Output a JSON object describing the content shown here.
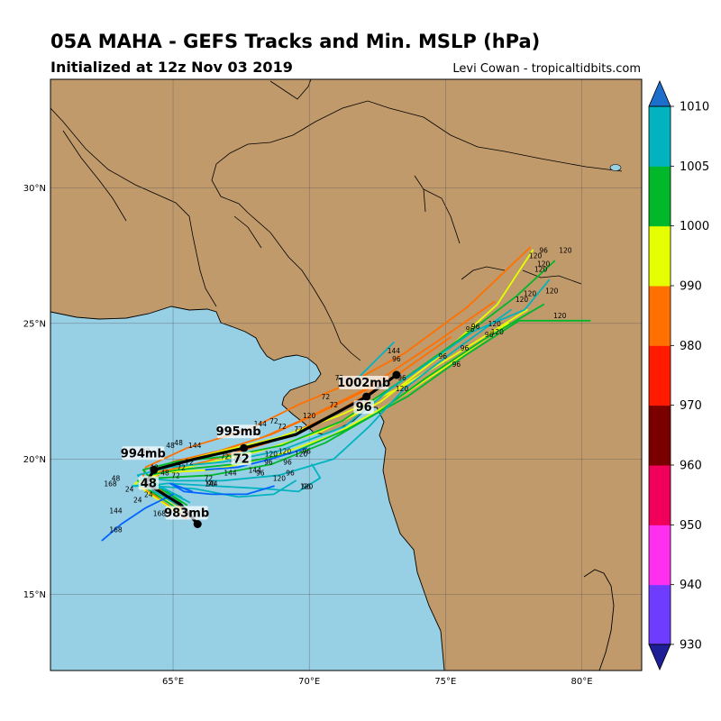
{
  "header": {
    "title": "05A MAHA - GEFS Tracks and Min. MSLP (hPa)",
    "subtitle": "Initialized at 12z Nov 03 2019",
    "credit": "Levi Cowan - tropicaltidbits.com"
  },
  "map": {
    "lon_range": [
      60.5,
      82.2
    ],
    "lat_range": [
      12.2,
      34.0
    ],
    "ocean_color": "#97cfe5",
    "land_color": "#c09a6b",
    "lon_ticks": [
      {
        "lon": 65,
        "label": "65°E"
      },
      {
        "lon": 70,
        "label": "70°E"
      },
      {
        "lon": 75,
        "label": "75°E"
      },
      {
        "lon": 80,
        "label": "80°E"
      }
    ],
    "lat_ticks": [
      {
        "lat": 15,
        "label": "15°N"
      },
      {
        "lat": 20,
        "label": "20°N"
      },
      {
        "lat": 25,
        "label": "25°N"
      },
      {
        "lat": 30,
        "label": "30°N"
      }
    ]
  },
  "chart_data": {
    "type": "scatter",
    "title": "05A MAHA - GEFS Tracks and Min. MSLP (hPa)",
    "xlabel": "",
    "ylabel": "",
    "xlim": [
      60.5,
      82.2
    ],
    "ylim": [
      12.2,
      34.0
    ],
    "grid": true,
    "mean_track": [
      {
        "lon": 65.9,
        "lat": 17.6
      },
      {
        "lon": 65.3,
        "lat": 18.3
      },
      {
        "lon": 64.5,
        "lat": 18.8
      },
      {
        "lon": 64.0,
        "lat": 19.1
      },
      {
        "lon": 64.3,
        "lat": 19.6
      },
      {
        "lon": 65.8,
        "lat": 20.0
      },
      {
        "lon": 67.6,
        "lat": 20.4
      },
      {
        "lon": 69.5,
        "lat": 20.9
      },
      {
        "lon": 71.0,
        "lat": 21.7
      },
      {
        "lon": 72.1,
        "lat": 22.3
      },
      {
        "lon": 73.2,
        "lat": 23.1
      }
    ],
    "mean_track_markers": [
      {
        "lon": 65.9,
        "lat": 17.6
      },
      {
        "lon": 64.3,
        "lat": 19.6
      },
      {
        "lon": 67.6,
        "lat": 20.4
      },
      {
        "lon": 72.1,
        "lat": 22.3
      },
      {
        "lon": 73.2,
        "lat": 23.1
      }
    ],
    "pressure_annotations": [
      {
        "text": "983mb",
        "lon": 65.5,
        "lat": 17.9
      },
      {
        "text": "994mb",
        "lon": 63.9,
        "lat": 20.1
      },
      {
        "text": "995mb",
        "lon": 67.4,
        "lat": 20.9
      },
      {
        "text": "1002mb",
        "lon": 72.0,
        "lat": 22.7
      },
      {
        "text": "48",
        "lon": 64.1,
        "lat": 19.0
      },
      {
        "text": "72",
        "lon": 67.5,
        "lat": 19.9
      },
      {
        "text": "96",
        "lon": 72.0,
        "lat": 21.8
      }
    ],
    "members": [
      {
        "color": "#ff7000",
        "points": [
          [
            65.7,
            17.9
          ],
          [
            64.9,
            18.5
          ],
          [
            64.2,
            19.2
          ],
          [
            64.8,
            19.7
          ],
          [
            66.4,
            20.2
          ],
          [
            68.3,
            20.8
          ],
          [
            70.1,
            21.6
          ],
          [
            72.1,
            22.6
          ],
          [
            74.5,
            24.2
          ],
          [
            76.8,
            25.8
          ]
        ]
      },
      {
        "color": "#ff7000",
        "points": [
          [
            65.5,
            17.8
          ],
          [
            64.6,
            18.4
          ],
          [
            63.9,
            19.1
          ],
          [
            64.4,
            19.5
          ],
          [
            66.2,
            19.9
          ],
          [
            68.5,
            20.6
          ],
          [
            70.6,
            21.5
          ],
          [
            72.8,
            22.8
          ],
          [
            75.2,
            24.5
          ]
        ]
      },
      {
        "color": "#ff7000",
        "points": [
          [
            65.6,
            18.0
          ],
          [
            64.7,
            18.6
          ],
          [
            64.1,
            19.3
          ],
          [
            65.0,
            19.9
          ],
          [
            66.7,
            20.3
          ],
          [
            68.6,
            20.9
          ],
          [
            70.8,
            21.9
          ],
          [
            73.0,
            23.0
          ]
        ]
      },
      {
        "color": "#ff7000",
        "points": [
          [
            65.4,
            17.9
          ],
          [
            64.5,
            18.5
          ],
          [
            63.8,
            19.0
          ],
          [
            64.0,
            19.7
          ],
          [
            65.5,
            20.4
          ],
          [
            67.8,
            21.1
          ],
          [
            69.6,
            22.0
          ],
          [
            71.5,
            22.8
          ],
          [
            73.5,
            23.9
          ],
          [
            75.8,
            25.6
          ],
          [
            78.1,
            27.8
          ]
        ]
      },
      {
        "color": "#e5ff00",
        "points": [
          [
            65.3,
            18.1
          ],
          [
            64.4,
            18.7
          ],
          [
            63.9,
            19.2
          ],
          [
            64.6,
            19.5
          ],
          [
            66.5,
            19.6
          ],
          [
            68.7,
            20.1
          ],
          [
            70.9,
            20.9
          ],
          [
            72.9,
            22.0
          ],
          [
            75.0,
            23.4
          ],
          [
            77.3,
            25.0
          ]
        ]
      },
      {
        "color": "#e5ff00",
        "points": [
          [
            65.4,
            18.2
          ],
          [
            64.5,
            18.8
          ],
          [
            64.0,
            19.3
          ],
          [
            64.9,
            19.8
          ],
          [
            66.8,
            20.3
          ],
          [
            68.9,
            20.8
          ],
          [
            71.1,
            21.6
          ],
          [
            73.3,
            22.6
          ],
          [
            75.6,
            24.0
          ],
          [
            78.0,
            25.5
          ]
        ]
      },
      {
        "color": "#e5ff00",
        "points": [
          [
            65.2,
            18.0
          ],
          [
            64.3,
            18.6
          ],
          [
            63.6,
            19.1
          ],
          [
            64.2,
            19.4
          ],
          [
            66.0,
            19.8
          ],
          [
            68.2,
            20.3
          ],
          [
            70.4,
            21.0
          ],
          [
            72.6,
            22.1
          ],
          [
            74.8,
            23.8
          ],
          [
            76.9,
            25.7
          ],
          [
            78.2,
            27.7
          ]
        ]
      },
      {
        "color": "#00b82a",
        "points": [
          [
            65.5,
            18.3
          ],
          [
            64.6,
            18.9
          ],
          [
            64.1,
            19.4
          ],
          [
            65.2,
            19.6
          ],
          [
            67.2,
            19.8
          ],
          [
            69.3,
            20.2
          ],
          [
            71.4,
            21.1
          ],
          [
            73.6,
            22.3
          ],
          [
            75.7,
            23.8
          ],
          [
            77.7,
            25.1
          ],
          [
            80.3,
            25.1
          ]
        ]
      },
      {
        "color": "#00b82a",
        "points": [
          [
            65.1,
            18.2
          ],
          [
            64.2,
            18.8
          ],
          [
            63.7,
            19.2
          ],
          [
            64.5,
            19.3
          ],
          [
            66.4,
            19.4
          ],
          [
            68.6,
            19.8
          ],
          [
            70.6,
            20.6
          ],
          [
            72.5,
            21.7
          ],
          [
            74.3,
            23.0
          ],
          [
            76.4,
            24.4
          ],
          [
            78.6,
            25.7
          ]
        ]
      },
      {
        "color": "#00b82a",
        "points": [
          [
            65.3,
            18.4
          ],
          [
            64.4,
            19.0
          ],
          [
            63.9,
            19.6
          ],
          [
            65.1,
            19.9
          ],
          [
            67.0,
            20.1
          ],
          [
            69.0,
            20.5
          ],
          [
            71.2,
            21.4
          ],
          [
            73.4,
            22.9
          ],
          [
            75.5,
            24.4
          ],
          [
            77.6,
            26.0
          ],
          [
            79.0,
            27.3
          ]
        ]
      },
      {
        "color": "#00b3bf",
        "points": [
          [
            65.6,
            18.4
          ],
          [
            64.7,
            18.9
          ],
          [
            64.0,
            19.0
          ],
          [
            64.8,
            19.1
          ],
          [
            66.6,
            19.0
          ],
          [
            68.4,
            18.9
          ],
          [
            69.6,
            18.8
          ],
          [
            70.4,
            19.3
          ],
          [
            70.1,
            19.8
          ]
        ]
      },
      {
        "color": "#00b3bf",
        "points": [
          [
            65.4,
            18.5
          ],
          [
            64.5,
            19.0
          ],
          [
            63.9,
            19.3
          ],
          [
            65.0,
            19.2
          ],
          [
            66.8,
            19.2
          ],
          [
            68.9,
            19.4
          ],
          [
            70.9,
            20.0
          ],
          [
            72.2,
            21.2
          ],
          [
            73.5,
            22.6
          ],
          [
            75.6,
            24.2
          ],
          [
            77.4,
            25.5
          ]
        ]
      },
      {
        "color": "#00b3bf",
        "points": [
          [
            65.3,
            18.6
          ],
          [
            64.2,
            19.1
          ],
          [
            63.5,
            19.0
          ],
          [
            64.3,
            19.0
          ],
          [
            65.8,
            18.9
          ],
          [
            67.4,
            18.6
          ],
          [
            68.7,
            18.7
          ],
          [
            69.5,
            19.2
          ]
        ]
      },
      {
        "color": "#00b3bf",
        "points": [
          [
            65.2,
            18.3
          ],
          [
            64.3,
            18.8
          ],
          [
            63.7,
            19.4
          ],
          [
            64.9,
            19.7
          ],
          [
            66.9,
            19.9
          ],
          [
            68.9,
            20.3
          ],
          [
            71.3,
            21.2
          ],
          [
            73.0,
            22.6
          ],
          [
            74.6,
            23.7
          ],
          [
            76.0,
            24.7
          ],
          [
            77.9,
            25.5
          ],
          [
            78.8,
            26.6
          ]
        ]
      },
      {
        "color": "#00b3bf",
        "points": [
          [
            71.8,
            23.0
          ],
          [
            72.4,
            23.6
          ],
          [
            73.1,
            24.3
          ]
        ]
      },
      {
        "color": "#0064ff",
        "points": [
          [
            65.0,
            18.7
          ],
          [
            64.0,
            18.2
          ],
          [
            63.1,
            17.6
          ],
          [
            62.4,
            17.0
          ]
        ]
      },
      {
        "color": "#0064ff",
        "points": [
          [
            65.7,
            18.8
          ],
          [
            64.9,
            19.1
          ],
          [
            65.4,
            18.8
          ],
          [
            66.4,
            18.7
          ],
          [
            67.7,
            18.7
          ],
          [
            68.7,
            19.0
          ]
        ]
      },
      {
        "color": "#0064ff",
        "points": [
          [
            66.2,
            19.6
          ],
          [
            67.4,
            19.7
          ],
          [
            68.6,
            20.0
          ],
          [
            69.9,
            20.4
          ]
        ]
      }
    ],
    "forecast_hour_labels": [
      {
        "text": "48",
        "lon": 62.9,
        "lat": 19.2
      },
      {
        "text": "48",
        "lon": 64.9,
        "lat": 20.4
      },
      {
        "text": "48",
        "lon": 65.2,
        "lat": 20.5
      },
      {
        "text": "48",
        "lon": 64.0,
        "lat": 20.2
      },
      {
        "text": "48",
        "lon": 64.3,
        "lat": 19.6
      },
      {
        "text": "48",
        "lon": 64.7,
        "lat": 19.4
      },
      {
        "text": "24",
        "lon": 63.4,
        "lat": 18.8
      },
      {
        "text": "24",
        "lon": 64.1,
        "lat": 18.6
      },
      {
        "text": "24",
        "lon": 63.7,
        "lat": 18.4
      },
      {
        "text": "72",
        "lon": 65.3,
        "lat": 19.6
      },
      {
        "text": "72",
        "lon": 65.6,
        "lat": 19.8
      },
      {
        "text": "72",
        "lon": 65.1,
        "lat": 19.3
      },
      {
        "text": "72",
        "lon": 66.3,
        "lat": 19.2
      },
      {
        "text": "72",
        "lon": 66.9,
        "lat": 20.0
      },
      {
        "text": "72",
        "lon": 68.7,
        "lat": 21.3
      },
      {
        "text": "72",
        "lon": 69.0,
        "lat": 21.1
      },
      {
        "text": "72",
        "lon": 69.6,
        "lat": 21.0
      },
      {
        "text": "72",
        "lon": 71.1,
        "lat": 22.9
      },
      {
        "text": "72",
        "lon": 70.6,
        "lat": 22.2
      },
      {
        "text": "72",
        "lon": 70.9,
        "lat": 21.9
      },
      {
        "text": "144",
        "lon": 62.9,
        "lat": 18.0
      },
      {
        "text": "144",
        "lon": 65.8,
        "lat": 20.4
      },
      {
        "text": "144",
        "lon": 67.3,
        "lat": 19.9
      },
      {
        "text": "144",
        "lon": 66.4,
        "lat": 19.0
      },
      {
        "text": "144",
        "lon": 68.2,
        "lat": 21.2
      },
      {
        "text": "144",
        "lon": 67.1,
        "lat": 19.4
      },
      {
        "text": "144",
        "lon": 68.0,
        "lat": 19.5
      },
      {
        "text": "144",
        "lon": 73.1,
        "lat": 23.9
      },
      {
        "text": "168",
        "lon": 62.7,
        "lat": 19.0
      },
      {
        "text": "168",
        "lon": 64.5,
        "lat": 17.9
      },
      {
        "text": "168",
        "lon": 62.9,
        "lat": 17.3
      },
      {
        "text": "96",
        "lon": 66.4,
        "lat": 19.0
      },
      {
        "text": "96",
        "lon": 68.2,
        "lat": 19.4
      },
      {
        "text": "96",
        "lon": 68.5,
        "lat": 19.8
      },
      {
        "text": "96",
        "lon": 69.3,
        "lat": 19.4
      },
      {
        "text": "96",
        "lon": 69.9,
        "lat": 20.2
      },
      {
        "text": "96",
        "lon": 69.2,
        "lat": 19.8
      },
      {
        "text": "96",
        "lon": 69.9,
        "lat": 18.9
      },
      {
        "text": "96",
        "lon": 73.2,
        "lat": 23.6
      },
      {
        "text": "96",
        "lon": 74.9,
        "lat": 23.7
      },
      {
        "text": "96",
        "lon": 75.4,
        "lat": 23.4
      },
      {
        "text": "96",
        "lon": 75.7,
        "lat": 24.0
      },
      {
        "text": "96",
        "lon": 75.9,
        "lat": 24.7
      },
      {
        "text": "96",
        "lon": 76.1,
        "lat": 24.8
      },
      {
        "text": "96",
        "lon": 76.6,
        "lat": 24.5
      },
      {
        "text": "96",
        "lon": 78.6,
        "lat": 27.6
      },
      {
        "text": "96",
        "lon": 73.4,
        "lat": 22.9
      },
      {
        "text": "120",
        "lon": 68.6,
        "lat": 20.1
      },
      {
        "text": "120",
        "lon": 69.1,
        "lat": 20.2
      },
      {
        "text": "120",
        "lon": 69.7,
        "lat": 20.1
      },
      {
        "text": "120",
        "lon": 68.9,
        "lat": 19.2
      },
      {
        "text": "120",
        "lon": 69.9,
        "lat": 18.9
      },
      {
        "text": "120",
        "lon": 70.0,
        "lat": 21.5
      },
      {
        "text": "120",
        "lon": 73.4,
        "lat": 22.5
      },
      {
        "text": "120",
        "lon": 76.8,
        "lat": 24.9
      },
      {
        "text": "120",
        "lon": 76.9,
        "lat": 24.6
      },
      {
        "text": "120",
        "lon": 77.8,
        "lat": 25.8
      },
      {
        "text": "120",
        "lon": 78.1,
        "lat": 26.0
      },
      {
        "text": "120",
        "lon": 78.3,
        "lat": 27.4
      },
      {
        "text": "120",
        "lon": 78.5,
        "lat": 26.9
      },
      {
        "text": "120",
        "lon": 78.6,
        "lat": 27.1
      },
      {
        "text": "120",
        "lon": 79.4,
        "lat": 27.6
      },
      {
        "text": "120",
        "lon": 78.9,
        "lat": 26.1
      },
      {
        "text": "120",
        "lon": 79.2,
        "lat": 25.2
      }
    ]
  },
  "colorbar": {
    "levels": [
      930,
      940,
      950,
      960,
      970,
      980,
      990,
      1000,
      1005,
      1010
    ],
    "bands": [
      {
        "color": "#6e3cff"
      },
      {
        "color": "#ff2ff0"
      },
      {
        "color": "#f0005a"
      },
      {
        "color": "#7a0000"
      },
      {
        "color": "#ff1a00"
      },
      {
        "color": "#ff7000"
      },
      {
        "color": "#e5ff00"
      },
      {
        "color": "#00b82a"
      },
      {
        "color": "#00b3bf"
      }
    ],
    "under_color": "#1e1e96",
    "over_color": "#1e6ecc"
  }
}
